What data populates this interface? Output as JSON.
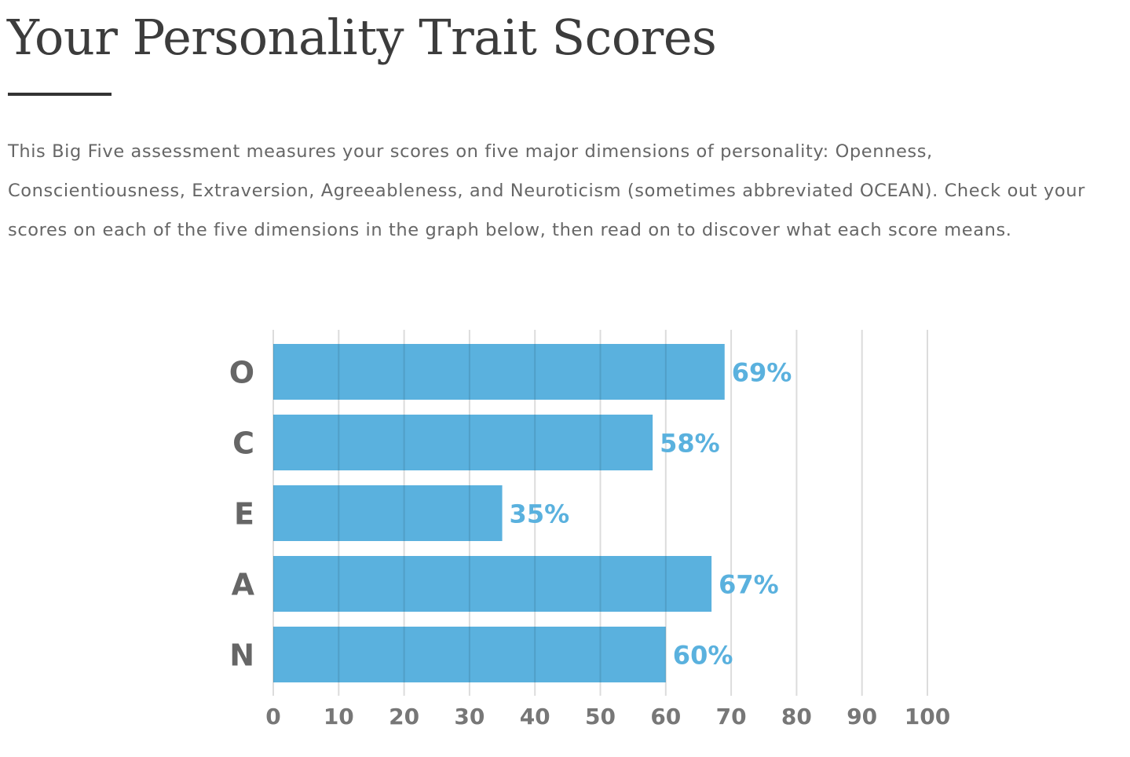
{
  "page": {
    "title": "Your Personality Trait Scores",
    "intro": "This Big Five assessment measures your scores on five major dimensions of personality: Openness, Conscientiousness, Extraversion, Agreeableness, and Neuroticism (sometimes abbreviated OCEAN). Check out your scores on each of the five dimensions in the graph below, then read on to discover what each score means."
  },
  "colors": {
    "bar": "#5ab1de",
    "value_label": "#5ab1de",
    "category_label": "#666666",
    "tick_label": "#777777",
    "grid": "#dcdcdc",
    "title": "#3c3c3c",
    "body_text": "#666666"
  },
  "chart_data": {
    "type": "bar",
    "orientation": "horizontal",
    "categories": [
      "O",
      "C",
      "E",
      "A",
      "N"
    ],
    "values": [
      69,
      58,
      35,
      67,
      60
    ],
    "value_labels": [
      "69%",
      "58%",
      "35%",
      "67%",
      "60%"
    ],
    "xlim": [
      0,
      100
    ],
    "xticks": [
      "0",
      "10",
      "20",
      "30",
      "40",
      "50",
      "60",
      "70",
      "80",
      "90",
      "100"
    ],
    "grid": "vertical",
    "legend": "none",
    "title": "",
    "xlabel": "",
    "ylabel": ""
  }
}
